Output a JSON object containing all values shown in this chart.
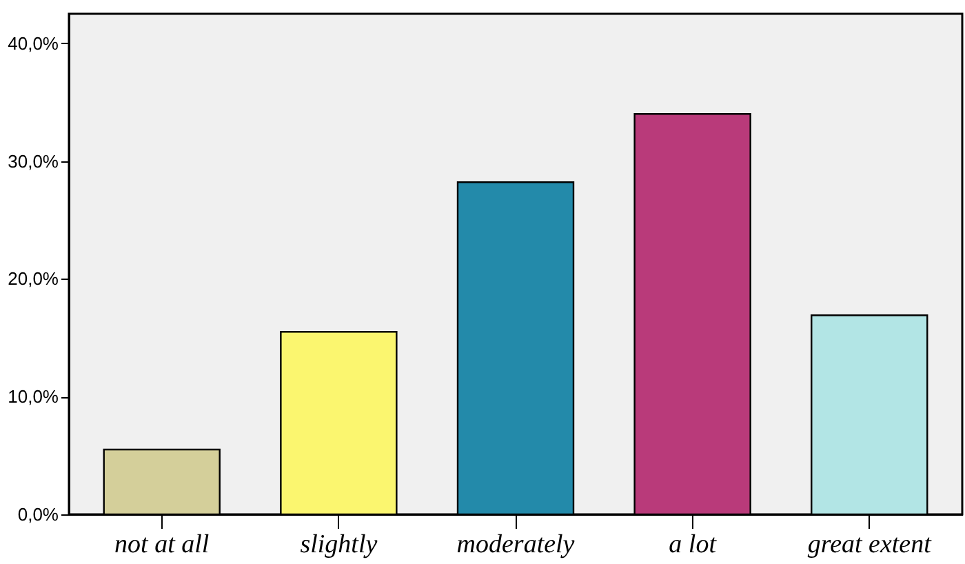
{
  "chart_data": {
    "type": "bar",
    "categories": [
      "not at all",
      "slightly",
      "moderately",
      "a lot",
      "great extent"
    ],
    "values": [
      5.5,
      15.5,
      28.2,
      34,
      16.9
    ],
    "colors": [
      "#d4cf9a",
      "#fbf66f",
      "#238aaa",
      "#b93a7a",
      "#b2e5e5"
    ],
    "ylim": [
      0,
      42.5
    ],
    "yticks": [
      {
        "value": 0,
        "label": "0,0%"
      },
      {
        "value": 10,
        "label": "10,0%"
      },
      {
        "value": 20,
        "label": "20,0%"
      },
      {
        "value": 30,
        "label": "30,0%"
      },
      {
        "value": 40,
        "label": "40,0%"
      }
    ],
    "grid": false
  }
}
